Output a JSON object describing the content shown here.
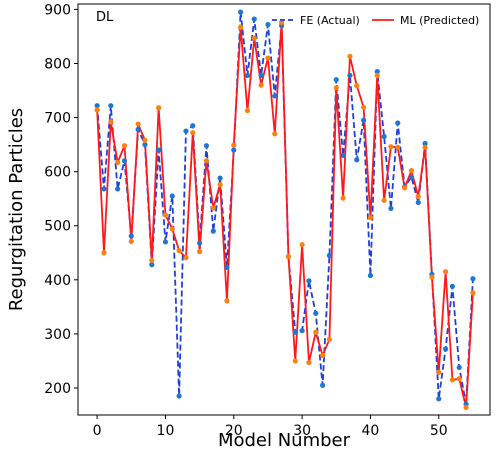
{
  "chart_data": {
    "type": "line",
    "annotation": "DL",
    "xlabel": "Model Number",
    "ylabel": "Regurgitation Particles",
    "xlim": [
      -2.8,
      57.5
    ],
    "ylim": [
      150,
      910
    ],
    "xticks": [
      0,
      10,
      20,
      30,
      40,
      50
    ],
    "yticks": [
      200,
      300,
      400,
      500,
      600,
      700,
      800,
      900
    ],
    "legend_position": "top-right",
    "x": [
      0,
      1,
      2,
      3,
      4,
      5,
      6,
      7,
      8,
      9,
      10,
      11,
      12,
      13,
      14,
      15,
      16,
      17,
      18,
      19,
      20,
      21,
      22,
      23,
      24,
      25,
      26,
      27,
      28,
      29,
      30,
      31,
      32,
      33,
      34,
      35,
      36,
      37,
      38,
      39,
      40,
      41,
      42,
      43,
      44,
      45,
      46,
      47,
      48,
      49,
      50,
      51,
      52,
      53,
      54,
      55
    ],
    "series": [
      {
        "name": "FE (Actual)",
        "style": "dashed",
        "line_color": "#1f3fd9",
        "marker_color": "#1f77d4",
        "values": [
          722,
          568,
          722,
          568,
          620,
          481,
          678,
          650,
          428,
          640,
          470,
          555,
          185,
          675,
          685,
          468,
          648,
          490,
          588,
          423,
          640,
          895,
          778,
          882,
          778,
          872,
          740,
          870,
          443,
          303,
          306,
          398,
          338,
          205,
          445,
          770,
          630,
          778,
          622,
          695,
          408,
          785,
          665,
          532,
          690,
          572,
          590,
          543,
          652,
          410,
          180,
          272,
          388,
          238,
          170,
          402
        ]
      },
      {
        "name": "ML (Predicted)",
        "style": "solid",
        "line_color": "#ff1a1a",
        "marker_color": "#ff7f0e",
        "values": [
          714,
          450,
          692,
          617,
          648,
          471,
          688,
          658,
          436,
          718,
          520,
          494,
          454,
          441,
          672,
          452,
          620,
          533,
          576,
          361,
          649,
          867,
          713,
          847,
          760,
          810,
          670,
          876,
          443,
          250,
          465,
          247,
          303,
          260,
          290,
          755,
          551,
          813,
          759,
          719,
          515,
          778,
          547,
          646,
          645,
          570,
          602,
          554,
          645,
          405,
          229,
          415,
          215,
          217,
          164,
          376
        ]
      }
    ]
  }
}
